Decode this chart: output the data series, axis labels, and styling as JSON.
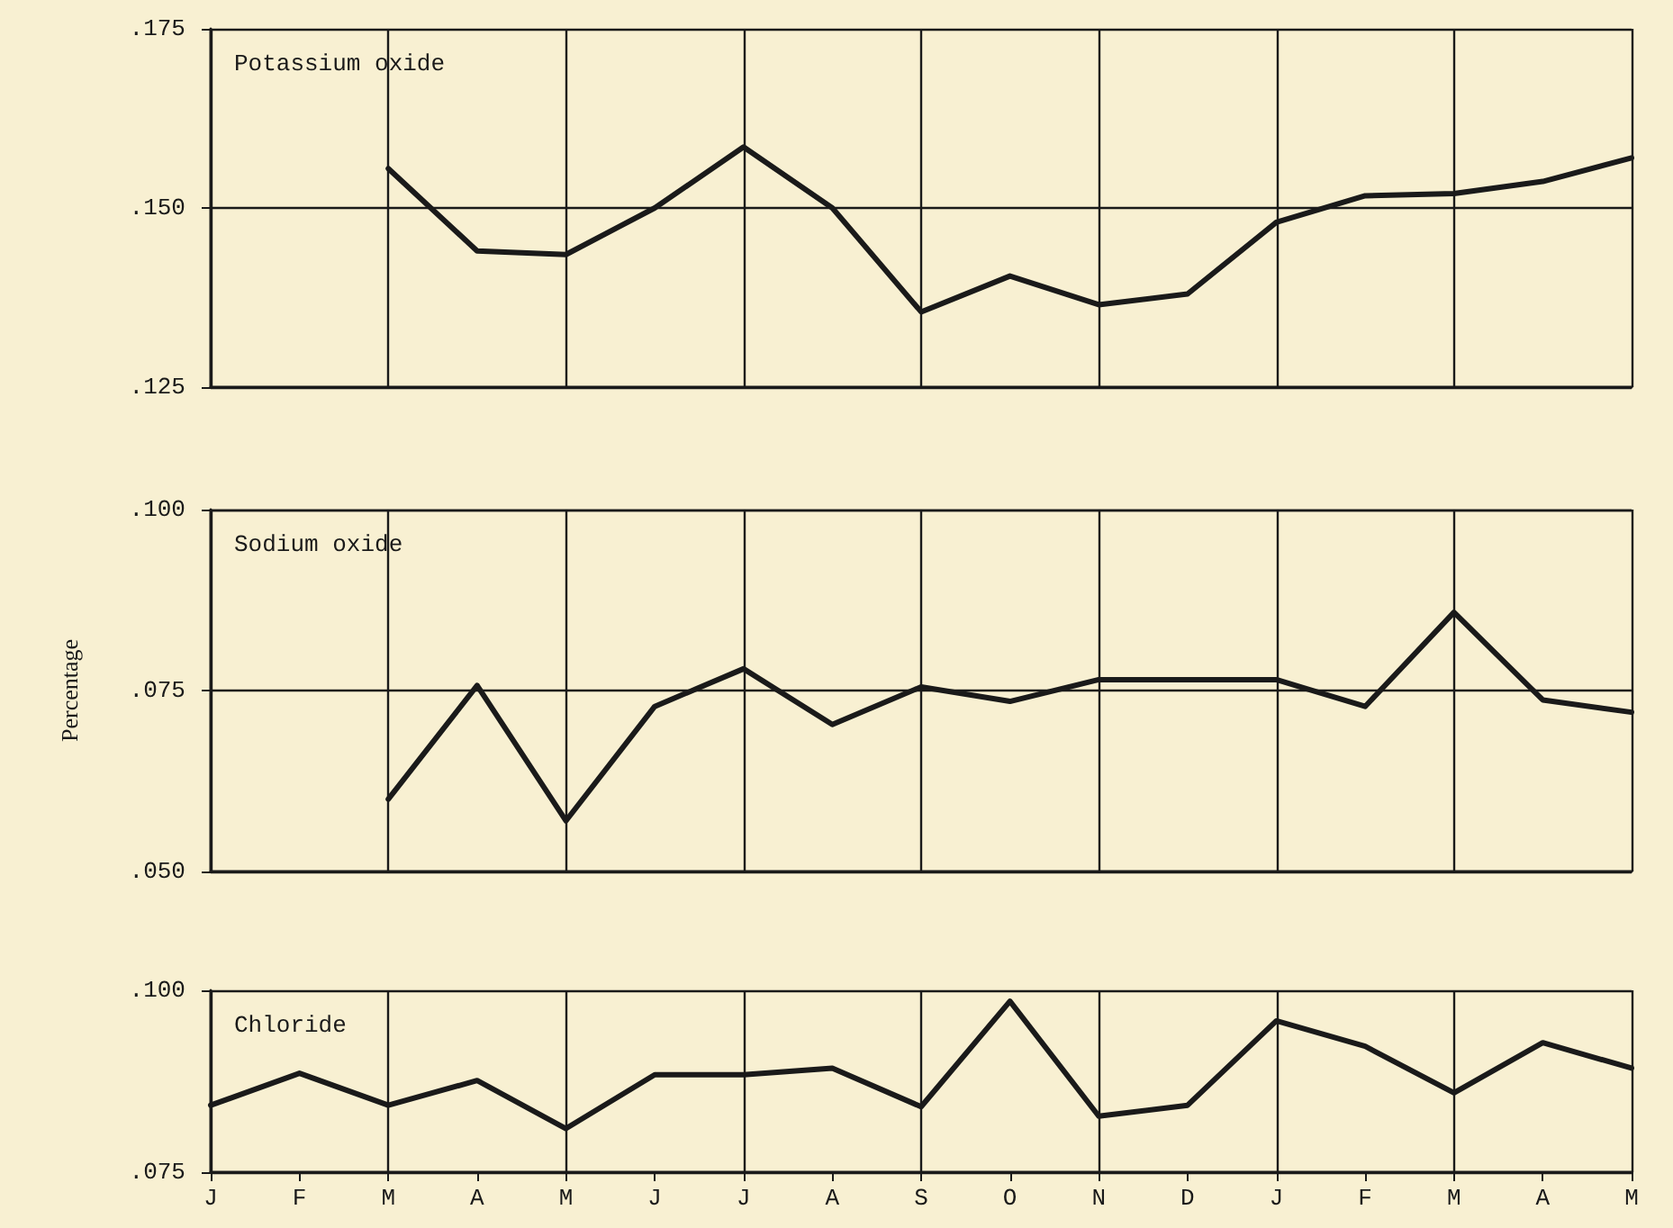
{
  "chart_data": [
    {
      "type": "line",
      "title": "Potassium oxide",
      "categories": [
        null,
        null,
        null,
        null,
        null,
        null,
        null,
        null,
        null,
        null,
        null,
        null,
        null,
        null,
        null,
        null,
        null
      ],
      "series": [
        {
          "color": "#1a1a1a",
          "values": [
            null,
            null,
            0.1555,
            0.144,
            0.1435,
            0.15,
            0.1585,
            0.15,
            0.1355,
            0.1405,
            0.1365,
            0.138,
            0.148,
            0.1517,
            0.152,
            0.1537,
            0.157
          ]
        }
      ],
      "ylim": [
        0.125,
        0.175
      ],
      "yticks": [
        {
          "value": 0.125,
          "label": ".125"
        },
        {
          "value": 0.15,
          "label": ".150"
        },
        {
          "value": 0.175,
          "label": ".175"
        }
      ],
      "grid": true,
      "tick_labels": "y",
      "marker": "none"
    },
    {
      "type": "line",
      "title": "Sodium oxide",
      "ylabel": "Percentage",
      "categories": [
        null,
        null,
        null,
        null,
        null,
        null,
        null,
        null,
        null,
        null,
        null,
        null,
        null,
        null,
        null,
        null,
        null
      ],
      "series": [
        {
          "color": "#1a1a1a",
          "values": [
            null,
            null,
            0.06,
            0.0757,
            0.057,
            0.0728,
            0.078,
            0.0703,
            0.0755,
            0.0735,
            0.0765,
            0.0765,
            0.0765,
            0.0728,
            0.0858,
            0.0737,
            0.072
          ]
        }
      ],
      "ylim": [
        0.05,
        0.1
      ],
      "yticks": [
        {
          "value": 0.05,
          "label": ".050"
        },
        {
          "value": 0.075,
          "label": ".075"
        },
        {
          "value": 0.1,
          "label": ".100"
        }
      ],
      "grid": true,
      "tick_labels": "y",
      "marker": "none"
    },
    {
      "type": "line",
      "title": "Chloride",
      "categories": [
        "J",
        "F",
        "M",
        "A",
        "M",
        "J",
        "J",
        "A",
        "S",
        "O",
        "N",
        "D",
        "J",
        "F",
        "M",
        "A",
        "M"
      ],
      "series": [
        {
          "color": "#1a1a1a",
          "values": [
            0.0842,
            0.0886,
            0.0842,
            0.0876,
            0.081,
            0.0884,
            0.0884,
            0.0893,
            0.084,
            0.0985,
            0.0827,
            0.0842,
            0.0958,
            0.0923,
            0.0859,
            0.0928,
            0.0893
          ]
        }
      ],
      "ylim": [
        0.075,
        0.1
      ],
      "yticks": [
        {
          "value": 0.075,
          "label": ".075"
        },
        {
          "value": 0.1,
          "label": ".100"
        }
      ],
      "grid": true,
      "marker": "none"
    }
  ]
}
